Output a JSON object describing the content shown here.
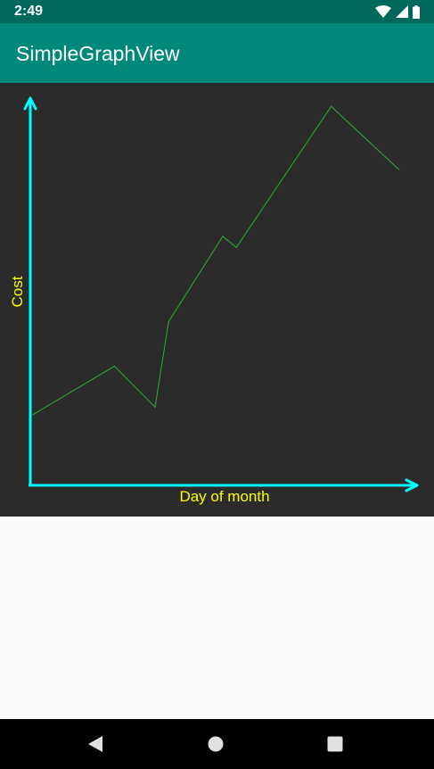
{
  "status_bar": {
    "time": "2:49",
    "icons": [
      "wifi-icon",
      "cell-signal-icon",
      "battery-icon"
    ]
  },
  "app_bar": {
    "title": "SimpleGraphView"
  },
  "colors": {
    "status_bar": "#00695c",
    "app_bar": "#00897b",
    "graph_background": "#2b2b2b",
    "axis": "#00ffff",
    "axis_label": "#ffff00",
    "series": "#2db02d"
  },
  "chart_data": {
    "type": "line",
    "title": "",
    "xlabel": "Day of month",
    "ylabel": "Cost",
    "grid": false,
    "tick_labels_shown": false,
    "xlim": [
      0,
      30
    ],
    "ylim": [
      0,
      100
    ],
    "series": [
      {
        "name": "Cost",
        "x": [
          1,
          7,
          10,
          11,
          15,
          16,
          23,
          28
        ],
        "y": [
          15,
          28,
          17,
          40,
          63,
          60,
          98,
          81
        ]
      }
    ]
  },
  "nav_bar": {
    "buttons": [
      "back-icon",
      "home-icon",
      "recents-icon"
    ]
  }
}
